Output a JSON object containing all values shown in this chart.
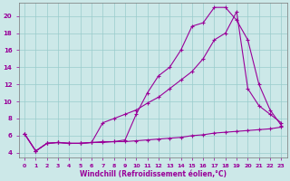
{
  "xlabel": "Windchill (Refroidissement éolien,°C)",
  "background_color": "#cce8e8",
  "line_color": "#990099",
  "grid_color": "#99cccc",
  "xlim": [
    -0.5,
    23.5
  ],
  "ylim": [
    3.5,
    21.5
  ],
  "xticks": [
    0,
    1,
    2,
    3,
    4,
    5,
    6,
    7,
    8,
    9,
    10,
    11,
    12,
    13,
    14,
    15,
    16,
    17,
    18,
    19,
    20,
    21,
    22,
    23
  ],
  "yticks": [
    4,
    6,
    8,
    10,
    12,
    14,
    16,
    18,
    20
  ],
  "line1_x": [
    0,
    1,
    2,
    3,
    4,
    5,
    6,
    7,
    8,
    9,
    10,
    11,
    12,
    13,
    14,
    15,
    16,
    17,
    18,
    19,
    20,
    21,
    22,
    23
  ],
  "line1_y": [
    6.2,
    4.2,
    5.1,
    5.2,
    5.1,
    5.1,
    5.2,
    5.2,
    5.3,
    5.3,
    5.4,
    5.5,
    5.6,
    5.7,
    5.8,
    6.0,
    6.1,
    6.3,
    6.4,
    6.5,
    6.6,
    6.7,
    6.8,
    7.0
  ],
  "line2_x": [
    0,
    1,
    2,
    3,
    4,
    5,
    6,
    7,
    8,
    9,
    10,
    11,
    12,
    13,
    14,
    15,
    16,
    17,
    18,
    19,
    20,
    21,
    22,
    23
  ],
  "line2_y": [
    6.2,
    4.2,
    5.1,
    5.2,
    5.1,
    5.1,
    5.2,
    7.5,
    8.0,
    8.5,
    9.0,
    9.8,
    10.5,
    11.5,
    12.5,
    13.5,
    15.0,
    17.2,
    18.0,
    20.5,
    11.5,
    9.5,
    8.5,
    7.5
  ],
  "line3_x": [
    0,
    1,
    2,
    3,
    4,
    5,
    6,
    7,
    8,
    9,
    10,
    11,
    12,
    13,
    14,
    15,
    16,
    17,
    18,
    19,
    20,
    21,
    22,
    23
  ],
  "line3_y": [
    6.2,
    4.2,
    5.1,
    5.2,
    5.1,
    5.1,
    5.2,
    5.3,
    5.3,
    5.5,
    8.5,
    11.0,
    13.0,
    14.0,
    16.0,
    18.8,
    19.2,
    21.0,
    21.0,
    19.5,
    17.2,
    12.0,
    9.0,
    7.2
  ]
}
